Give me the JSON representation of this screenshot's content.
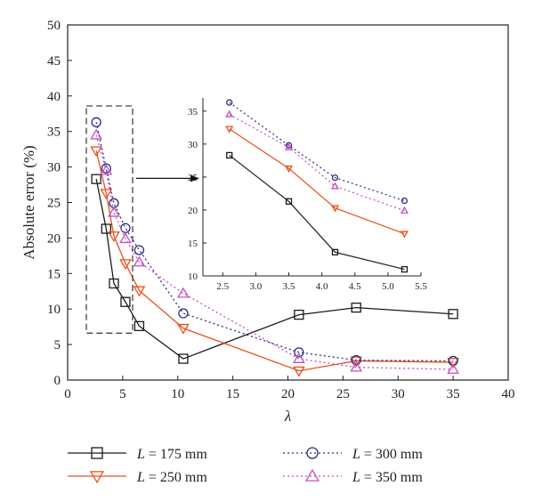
{
  "chart_data": [
    {
      "type": "line",
      "xlabel": "λ",
      "ylabel": "Absolute error (%)",
      "xlim": [
        0,
        40
      ],
      "ylim": [
        0,
        50
      ],
      "xticks": [
        0,
        5,
        10,
        15,
        20,
        25,
        30,
        35,
        40
      ],
      "yticks": [
        0,
        5,
        10,
        15,
        20,
        25,
        30,
        35,
        40,
        45,
        50
      ],
      "grid": false,
      "legend_position": "bottom",
      "series": [
        {
          "name": "= 175 mm",
          "var": "L",
          "color": "#1a1a1a",
          "marker": "square",
          "dash": "solid",
          "x": [
            2.6,
            3.5,
            4.2,
            5.25,
            6.5,
            10.5,
            21,
            26.2,
            35
          ],
          "y": [
            28.3,
            21.3,
            13.6,
            11.0,
            7.6,
            3.0,
            9.2,
            10.2,
            9.3
          ]
        },
        {
          "name": "= 250 mm",
          "var": "L",
          "color": "#e8501c",
          "marker": "triangle-down",
          "dash": "solid",
          "x": [
            2.6,
            3.5,
            4.2,
            5.25,
            6.5,
            10.5,
            21,
            26.2,
            35
          ],
          "y": [
            32.3,
            26.3,
            20.3,
            16.4,
            12.6,
            7.3,
            1.3,
            2.7,
            2.5
          ]
        },
        {
          "name": "= 300 mm",
          "var": "L",
          "color": "#2b2b8a",
          "marker": "circle",
          "dash": "dotted",
          "x": [
            2.6,
            3.5,
            4.2,
            5.25,
            6.5,
            10.5,
            21,
            26.2,
            35
          ],
          "y": [
            36.3,
            29.8,
            24.9,
            21.4,
            18.3,
            9.4,
            3.9,
            2.8,
            2.7
          ]
        },
        {
          "name": "= 350 mm",
          "var": "L",
          "color": "#c050c0",
          "marker": "triangle-up",
          "dash": "dotted",
          "x": [
            2.6,
            3.5,
            4.2,
            5.25,
            6.5,
            10.5,
            21,
            26.2,
            35
          ],
          "y": [
            34.5,
            29.5,
            23.6,
            19.9,
            16.6,
            12.2,
            3.0,
            1.8,
            1.5
          ]
        }
      ]
    },
    {
      "type": "line",
      "role": "inset (zoom of dashed region)",
      "xlim": [
        2.2,
        5.5
      ],
      "ylim": [
        10,
        37
      ],
      "xticks": [
        2.5,
        3.0,
        3.5,
        4.0,
        4.5,
        5.0,
        5.5
      ],
      "xtick_labels": [
        "2.5",
        "3.0",
        "3.5",
        "4.0",
        "4.5",
        "5.0",
        "5.5"
      ],
      "yticks": [
        10,
        15,
        20,
        25,
        30,
        35
      ],
      "series": [
        {
          "name": "= 175 mm",
          "var": "L",
          "color": "#1a1a1a",
          "marker": "square",
          "dash": "solid",
          "x": [
            2.6,
            3.5,
            4.2,
            5.25
          ],
          "y": [
            28.3,
            21.3,
            13.6,
            11.0
          ]
        },
        {
          "name": "= 250 mm",
          "var": "L",
          "color": "#e8501c",
          "marker": "triangle-down",
          "dash": "solid",
          "x": [
            2.6,
            3.5,
            4.2,
            5.25
          ],
          "y": [
            32.3,
            26.3,
            20.3,
            16.4
          ]
        },
        {
          "name": "= 300 mm",
          "var": "L",
          "color": "#2b2b8a",
          "marker": "circle",
          "dash": "dotted",
          "x": [
            2.6,
            3.5,
            4.2,
            5.25
          ],
          "y": [
            36.3,
            29.8,
            24.9,
            21.4
          ]
        },
        {
          "name": "= 350 mm",
          "var": "L",
          "color": "#c050c0",
          "marker": "triangle-up",
          "dash": "dotted",
          "x": [
            2.6,
            3.5,
            4.2,
            5.25
          ],
          "y": [
            34.5,
            29.5,
            23.6,
            19.9
          ]
        }
      ]
    }
  ],
  "zoom_region": {
    "x": [
      1.7,
      5.9
    ],
    "y": [
      6.6,
      38.6
    ]
  }
}
